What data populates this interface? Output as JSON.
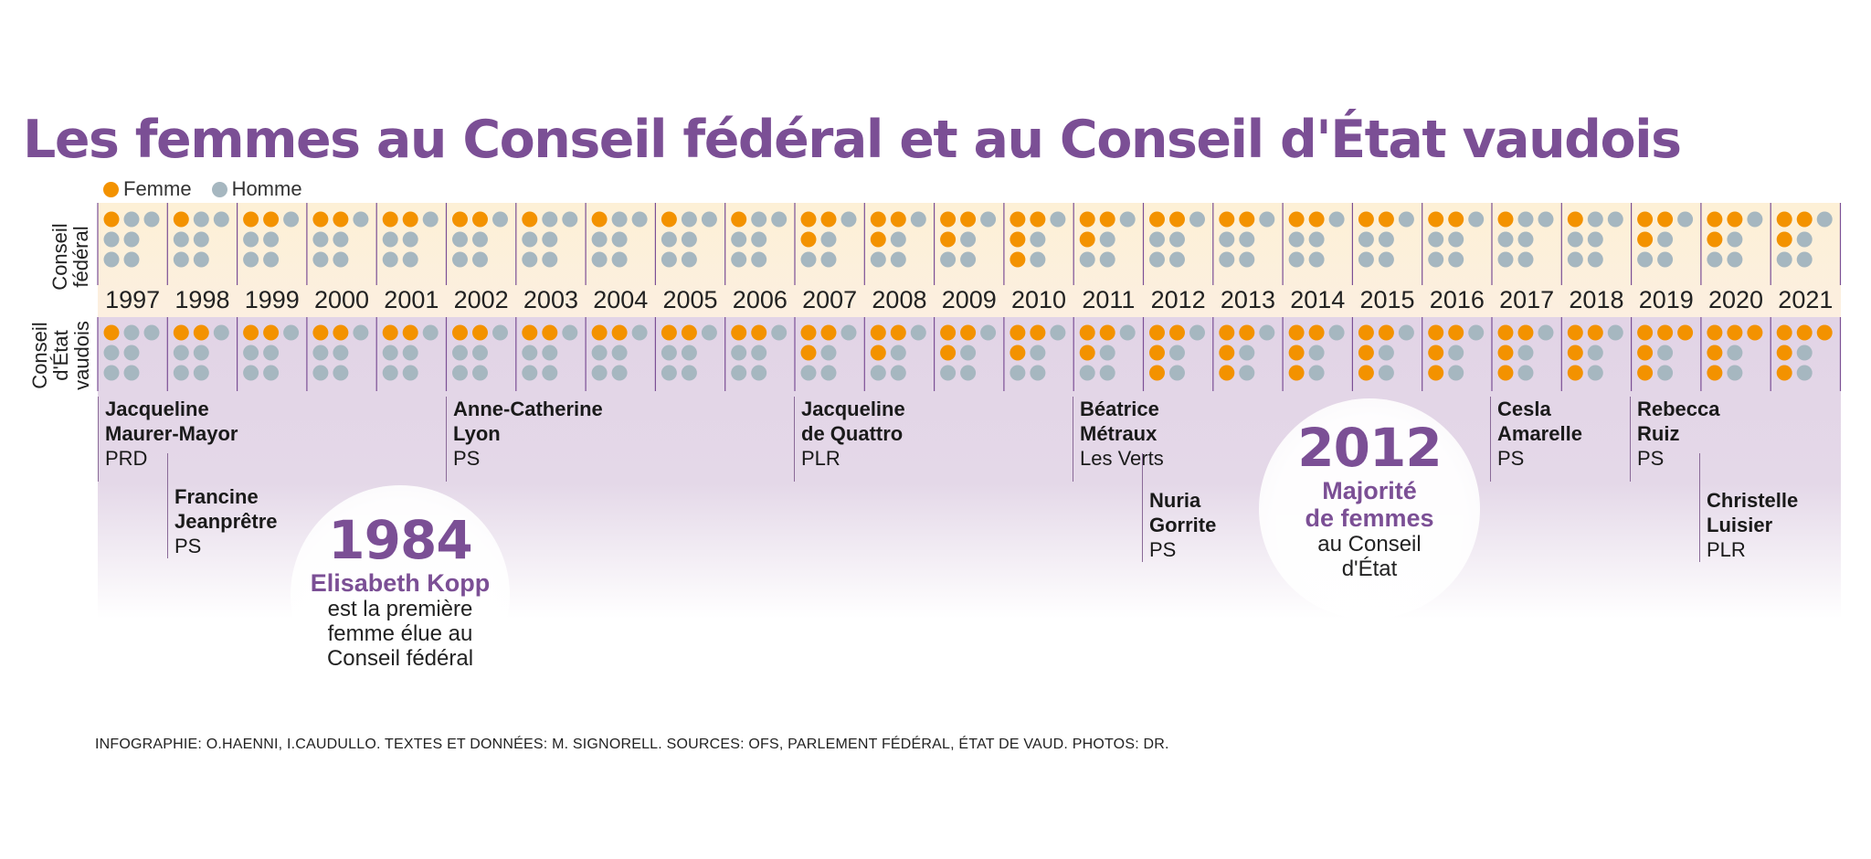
{
  "title": "Les femmes au Conseil fédéral et au Conseil d'État vaudois",
  "legend": {
    "female_label": "Femme",
    "male_label": "Homme"
  },
  "colors": {
    "female": "#f39200",
    "male": "#a6b7c0",
    "accent": "#7b4f95"
  },
  "row_labels": {
    "federal": [
      "Conseil",
      "fédéral"
    ],
    "vaud": [
      "Conseil",
      "d'État",
      "vaudois"
    ]
  },
  "chart_data": {
    "type": "table",
    "title": "Les femmes au Conseil fédéral et au Conseil d'État vaudois",
    "years": [
      "1997",
      "1998",
      "1999",
      "2000",
      "2001",
      "2002",
      "2003",
      "2004",
      "2005",
      "2006",
      "2007",
      "2008",
      "2009",
      "2010",
      "2011",
      "2012",
      "2013",
      "2014",
      "2015",
      "2016",
      "2017",
      "2018",
      "2019",
      "2020",
      "2021"
    ],
    "series": [
      {
        "name": "Conseil fédéral",
        "seats": 7,
        "women": [
          1,
          1,
          2,
          2,
          2,
          2,
          1,
          1,
          1,
          1,
          3,
          3,
          3,
          4,
          3,
          2,
          2,
          2,
          2,
          2,
          1,
          1,
          3,
          3,
          3
        ]
      },
      {
        "name": "Conseil d'État vaudois",
        "seats": 7,
        "women": [
          1,
          2,
          2,
          2,
          2,
          2,
          2,
          2,
          2,
          2,
          3,
          3,
          3,
          3,
          3,
          4,
          4,
          4,
          4,
          4,
          4,
          4,
          5,
          5,
          5
        ]
      }
    ]
  },
  "people": [
    {
      "first": "Jacqueline",
      "last": "Maurer-Mayor",
      "party": "PRD"
    },
    {
      "first": "Francine",
      "last": "Jeanprêtre",
      "party": "PS"
    },
    {
      "first": "Anne-Catherine",
      "last": "Lyon",
      "party": "PS"
    },
    {
      "first": "Jacqueline",
      "last": "de Quattro",
      "party": "PLR"
    },
    {
      "first": "Béatrice",
      "last": "Métraux",
      "party": "Les Verts"
    },
    {
      "first": "Nuria",
      "last": "Gorrite",
      "party": "PS"
    },
    {
      "first": "Cesla",
      "last": "Amarelle",
      "party": "PS"
    },
    {
      "first": "Rebecca",
      "last": "Ruiz",
      "party": "PS"
    },
    {
      "first": "Christelle",
      "last": "Luisier",
      "party": "PLR"
    }
  ],
  "callouts": [
    {
      "year": "1984",
      "headline": "Elisabeth Kopp",
      "lines": [
        "est la première",
        "femme élue au",
        "Conseil fédéral"
      ]
    },
    {
      "year": "2012",
      "headline_lines": [
        "Majorité",
        "de femmes"
      ],
      "lines": [
        "au Conseil",
        "d'État"
      ]
    }
  ],
  "credits": "INFOGRAPHIE: O.HAENNI, I.CAUDULLO. TEXTES ET DONNÉES: M. SIGNORELL. SOURCES: OFS, PARLEMENT FÉDÉRAL, ÉTAT DE VAUD. PHOTOS: DR."
}
